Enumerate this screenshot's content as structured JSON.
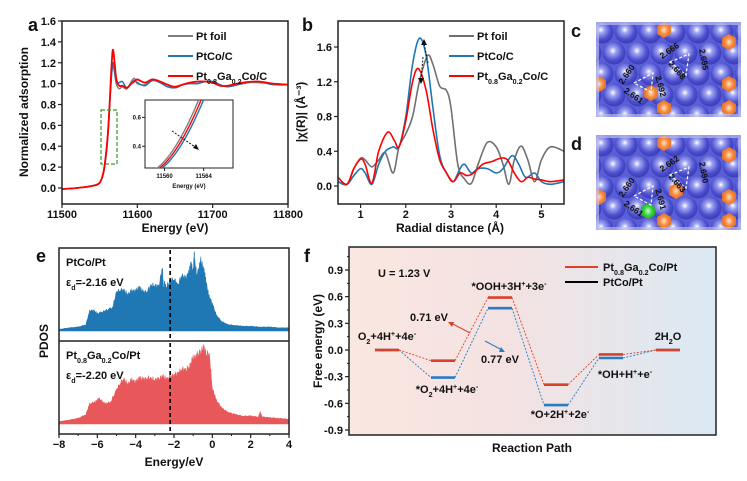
{
  "chart_data": [
    {
      "panel": "a",
      "type": "line",
      "xlabel": "Energy (eV)",
      "ylabel": "Normalized adsorption",
      "xlim": [
        11500,
        11800
      ],
      "ylim": [
        -0.15,
        1.6
      ],
      "xticks": [
        11500,
        11600,
        11700,
        11800
      ],
      "yticks": [
        0.0,
        0.2,
        0.4,
        0.6,
        0.8,
        1.0,
        1.2,
        1.4,
        1.6
      ],
      "ytick_labels": [
        "0.0",
        "0.2",
        "0.4",
        "0.6",
        "0.8",
        "1.0",
        "1.2",
        "1.4",
        "1.6"
      ],
      "legend_position": "top-right",
      "series": [
        {
          "name": "Pt foil",
          "color": "#7f7f7f",
          "x": [
            11500,
            11520,
            11540,
            11550,
            11555,
            11558,
            11560,
            11562,
            11564,
            11566,
            11568,
            11572,
            11576,
            11580,
            11586,
            11592,
            11596,
            11600,
            11610,
            11620,
            11630,
            11640,
            11650,
            11660,
            11670,
            11680,
            11690,
            11700,
            11710,
            11720,
            11740,
            11760,
            11780,
            11800
          ],
          "y": [
            -0.01,
            0.0,
            0.02,
            0.05,
            0.15,
            0.3,
            0.45,
            0.65,
            0.9,
            1.1,
            1.18,
            1.0,
            0.95,
            0.97,
            0.95,
            1.02,
            1.05,
            1.0,
            0.99,
            1.04,
            1.02,
            0.99,
            0.96,
            0.99,
            1.01,
            1.0,
            1.02,
            1.01,
            0.98,
            0.98,
            1.01,
            1.01,
            1.0,
            0.99
          ]
        },
        {
          "name": "PtCo/C",
          "color": "#1f77b4",
          "x": [
            11500,
            11520,
            11540,
            11550,
            11555,
            11558,
            11560,
            11562,
            11564,
            11566,
            11568,
            11572,
            11576,
            11580,
            11586,
            11592,
            11596,
            11600,
            11610,
            11620,
            11630,
            11640,
            11650,
            11660,
            11670,
            11680,
            11690,
            11700,
            11710,
            11720,
            11740,
            11760,
            11780,
            11800
          ],
          "y": [
            -0.01,
            0.0,
            0.02,
            0.05,
            0.14,
            0.28,
            0.42,
            0.62,
            0.88,
            1.1,
            1.2,
            1.02,
            1.01,
            1.02,
            0.96,
            1.0,
            1.03,
            1.01,
            0.98,
            1.03,
            1.01,
            0.97,
            0.96,
            0.99,
            1.0,
            1.0,
            1.02,
            1.02,
            0.99,
            0.97,
            1.0,
            1.02,
            0.99,
            0.99
          ]
        },
        {
          "name": "Pt0.8Ga0.2Co/C",
          "color": "#ff0000",
          "x": [
            11500,
            11520,
            11540,
            11550,
            11555,
            11558,
            11560,
            11562,
            11564,
            11566,
            11568,
            11572,
            11576,
            11580,
            11586,
            11592,
            11596,
            11600,
            11610,
            11620,
            11630,
            11640,
            11650,
            11660,
            11670,
            11680,
            11690,
            11700,
            11710,
            11720,
            11740,
            11760,
            11780,
            11800
          ],
          "y": [
            -0.01,
            0.0,
            0.02,
            0.05,
            0.15,
            0.3,
            0.44,
            0.64,
            0.92,
            1.2,
            1.32,
            1.05,
            0.98,
            0.98,
            0.96,
            1.0,
            1.02,
            1.04,
            1.01,
            1.04,
            1.02,
            0.99,
            0.97,
            0.99,
            1.01,
            1.02,
            1.02,
            1.01,
            0.98,
            0.98,
            1.01,
            1.02,
            1.0,
            0.99
          ]
        }
      ],
      "annotations": [
        "green dashed box around absorption edge (11555–11565 eV, 0.23–0.75)"
      ],
      "inset": {
        "xlabel": "Energy (eV)",
        "xticks": [
          11560,
          11564
        ],
        "yticks": [
          0.4,
          0.6
        ],
        "xlim": [
          11558,
          11567
        ],
        "ylim": [
          0.25,
          0.72
        ],
        "annotation": "dashed arrow indicating shift to higher energy"
      }
    },
    {
      "panel": "b",
      "type": "line",
      "xlabel": "Radial distance (Å)",
      "ylabel": "|χ(R)| (Å⁻³)",
      "xlim": [
        0.5,
        5.5
      ],
      "ylim": [
        -0.2,
        1.9
      ],
      "xticks": [
        1,
        2,
        3,
        4,
        5
      ],
      "yticks": [
        0.0,
        0.4,
        0.8,
        1.2,
        1.6
      ],
      "ytick_labels": [
        "0.0",
        "0.4",
        "0.8",
        "1.2",
        "1.6"
      ],
      "legend_position": "top-right",
      "series": [
        {
          "name": "Pt foil",
          "color": "#707070",
          "x": [
            0.5,
            0.7,
            0.85,
            1.0,
            1.1,
            1.25,
            1.4,
            1.55,
            1.72,
            1.85,
            2.0,
            2.15,
            2.3,
            2.48,
            2.6,
            2.75,
            2.9,
            3.0,
            3.15,
            3.3,
            3.45,
            3.6,
            3.8,
            4.0,
            4.15,
            4.28,
            4.4,
            4.55,
            4.7,
            4.85,
            5.0,
            5.2,
            5.5
          ],
          "y": [
            0.05,
            0.02,
            0.2,
            0.32,
            0.3,
            0.22,
            0.3,
            0.38,
            0.15,
            0.45,
            0.6,
            0.8,
            1.2,
            1.5,
            1.4,
            1.15,
            1.1,
            0.9,
            0.25,
            0.08,
            0.03,
            0.25,
            0.5,
            0.45,
            0.25,
            0.02,
            0.3,
            0.46,
            0.3,
            0.05,
            0.3,
            0.45,
            0.4
          ]
        },
        {
          "name": "PtCo/C",
          "color": "#1f77b4",
          "x": [
            0.5,
            0.7,
            0.85,
            1.0,
            1.1,
            1.25,
            1.4,
            1.55,
            1.72,
            1.85,
            2.0,
            2.15,
            2.3,
            2.45,
            2.6,
            2.75,
            2.9,
            3.05,
            3.2,
            3.3,
            3.45,
            3.6,
            3.8,
            4.0,
            4.15,
            4.35,
            4.5,
            4.65,
            4.85,
            5.0,
            5.2,
            5.5
          ],
          "y": [
            0.05,
            0.02,
            0.12,
            0.2,
            0.15,
            0.02,
            0.25,
            0.4,
            0.45,
            0.45,
            0.8,
            1.4,
            1.7,
            1.5,
            0.9,
            0.35,
            0.15,
            0.05,
            0.2,
            0.25,
            0.15,
            0.2,
            0.2,
            0.15,
            0.2,
            0.35,
            0.25,
            0.1,
            0.15,
            0.05,
            0.02,
            0.05
          ]
        },
        {
          "name": "Pt0.8Ga0.2Co/C",
          "color": "#ff0000",
          "x": [
            0.5,
            0.7,
            0.85,
            1.0,
            1.1,
            1.25,
            1.4,
            1.6,
            1.75,
            1.85,
            2.0,
            2.15,
            2.28,
            2.45,
            2.6,
            2.75,
            2.9,
            3.05,
            3.2,
            3.35,
            3.5,
            3.7,
            3.9,
            4.1,
            4.25,
            4.4,
            4.55,
            4.7,
            4.85,
            5.0,
            5.2,
            5.5
          ],
          "y": [
            0.1,
            0.02,
            0.2,
            0.31,
            0.25,
            0.03,
            0.4,
            0.62,
            0.52,
            0.45,
            0.75,
            1.2,
            1.35,
            1.1,
            0.65,
            0.3,
            0.15,
            0.05,
            0.15,
            0.12,
            0.15,
            0.25,
            0.28,
            0.32,
            0.3,
            0.15,
            0.05,
            0.1,
            0.08,
            0.07,
            0.05,
            0.07
          ]
        }
      ],
      "annotations": [
        "dashed arrows near peak at ~2.3 Å"
      ]
    },
    {
      "panel": "e",
      "type": "area",
      "xlabel": "Energy/eV",
      "ylabel": "PDOS",
      "xlim": [
        -8,
        4
      ],
      "xticks": [
        -8,
        -6,
        -4,
        -2,
        0,
        2,
        4
      ],
      "xtick_labels": [
        "−8",
        "−6",
        "−4",
        "−2",
        "0",
        "2",
        "4"
      ],
      "series": [
        {
          "name": "PtCo/Pt",
          "label_main": "PtCo/Pt",
          "epsilon_label": "ε",
          "epsilon_sub": "d",
          "epsilon_value": "=-2.16 eV",
          "d_band_center": -2.16,
          "color": "#1f77b4",
          "x": [
            -8,
            -7.5,
            -7,
            -6.6,
            -6.4,
            -6.2,
            -6,
            -5.6,
            -5.2,
            -5,
            -4.8,
            -4.6,
            -4.4,
            -4.2,
            -4,
            -3.8,
            -3.6,
            -3.4,
            -3.2,
            -3.0,
            -2.8,
            -2.6,
            -2.55,
            -2.5,
            -2.4,
            -2.2,
            -2.0,
            -1.8,
            -1.6,
            -1.4,
            -1.2,
            -1.1,
            -1.0,
            -0.95,
            -0.9,
            -0.8,
            -0.6,
            -0.45,
            -0.35,
            -0.2,
            0,
            0.2,
            0.5,
            0.8,
            1.2,
            1.6,
            2,
            2.5,
            3,
            3.5,
            4
          ],
          "y": [
            0.02,
            0.04,
            0.05,
            0.08,
            0.25,
            0.26,
            0.22,
            0.25,
            0.3,
            0.48,
            0.52,
            0.5,
            0.46,
            0.5,
            0.5,
            0.55,
            0.48,
            0.5,
            0.56,
            0.58,
            0.54,
            0.8,
            0.5,
            0.6,
            0.55,
            0.62,
            0.66,
            0.56,
            0.7,
            0.65,
            0.75,
            0.85,
            0.7,
            1.0,
            0.82,
            0.7,
            0.88,
            0.77,
            0.65,
            0.45,
            0.35,
            0.2,
            0.12,
            0.08,
            0.07,
            0.06,
            0.06,
            0.05,
            0.05,
            0.04,
            0.04
          ]
        },
        {
          "name": "Pt0.8Ga0.2Co/Pt",
          "label_main": "Pt0.8Ga0.2Co/Pt",
          "epsilon_label": "ε",
          "epsilon_sub": "d",
          "epsilon_value": "=-2.20 eV",
          "d_band_center": -2.2,
          "color": "#e8585a",
          "x": [
            -8,
            -7.5,
            -7,
            -6.6,
            -6.4,
            -6.1,
            -5.9,
            -5.6,
            -5.3,
            -5.0,
            -4.8,
            -4.6,
            -4.4,
            -4.2,
            -4.0,
            -3.8,
            -3.6,
            -3.4,
            -3.2,
            -3.0,
            -2.8,
            -2.6,
            -2.4,
            -2.2,
            -2.0,
            -1.8,
            -1.6,
            -1.4,
            -1.2,
            -1.0,
            -0.8,
            -0.6,
            -0.45,
            -0.3,
            -0.15,
            0,
            0.2,
            0.5,
            0.8,
            1.2,
            1.6,
            2,
            2.4,
            2.5,
            2.6,
            3,
            3.5,
            4
          ],
          "y": [
            0.03,
            0.05,
            0.07,
            0.12,
            0.25,
            0.28,
            0.32,
            0.25,
            0.28,
            0.42,
            0.52,
            0.55,
            0.5,
            0.55,
            0.52,
            0.58,
            0.55,
            0.58,
            0.56,
            0.56,
            0.55,
            0.6,
            0.56,
            0.58,
            0.62,
            0.62,
            0.7,
            0.66,
            0.72,
            0.82,
            0.85,
            0.9,
            0.95,
            0.88,
            0.85,
            0.45,
            0.3,
            0.2,
            0.15,
            0.12,
            0.1,
            0.1,
            0.09,
            0.15,
            0.09,
            0.08,
            0.07,
            0.06
          ]
        }
      ],
      "vline": -2.2
    },
    {
      "panel": "f",
      "type": "line",
      "title": "",
      "annotation": "U = 1.23 V",
      "xlabel": "Reaction Path",
      "ylabel": "Free energy (eV)",
      "ylim": [
        -0.95,
        1.1
      ],
      "yticks": [
        -0.9,
        -0.6,
        -0.3,
        0.0,
        0.3,
        0.6,
        0.9
      ],
      "ytick_labels": [
        "-0.9",
        "-0.6",
        "-0.3",
        "0.0",
        "0.3",
        "0.6",
        "0.9"
      ],
      "categories": [
        "O2+4H++4e-",
        "*O2+4H++4e-",
        "*OOH+3H++3e-",
        "*O+2H++2e-",
        "*OH+H++e-",
        "2H2O"
      ],
      "series": [
        {
          "name": "Pt0.8Ga0.2Co/Pt",
          "color": "#d9412b",
          "values": [
            0.0,
            -0.12,
            0.59,
            -0.39,
            -0.05,
            0.0
          ]
        },
        {
          "name": "PtCo/Pt",
          "color": "#2b7bbf",
          "legend_color": "#000000",
          "values": [
            0.0,
            -0.31,
            0.47,
            -0.62,
            -0.09,
            0.0
          ]
        }
      ],
      "barrier_labels": [
        {
          "text": "0.71 eV",
          "color": "#d9412b"
        },
        {
          "text": "0.77 eV",
          "color": "#2b7bbf"
        }
      ],
      "legend_position": "top-right"
    }
  ],
  "panels": {
    "a": {
      "letter": "a"
    },
    "b": {
      "letter": "b"
    },
    "c": {
      "letter": "c",
      "bond_lengths": [
        "2.660",
        "2.661",
        "2.692",
        "2.666",
        "2.668",
        "2.695"
      ]
    },
    "d": {
      "letter": "d",
      "bond_lengths": [
        "2.660",
        "2.661",
        "2.691",
        "2.662",
        "2.663",
        "2.690"
      ]
    },
    "e": {
      "letter": "e"
    },
    "f": {
      "letter": "f"
    }
  },
  "legend_ab": {
    "items": [
      {
        "main": "Pt foil",
        "sub1": "",
        "mid": "",
        "sub2": "",
        "tail": ""
      },
      {
        "main": "PtCo/C",
        "sub1": "",
        "mid": "",
        "sub2": "",
        "tail": ""
      },
      {
        "main": "Pt",
        "sub1": "0.8",
        "mid": "Ga",
        "sub2": "0.2",
        "tail": "Co/C"
      }
    ]
  },
  "legend_f": {
    "items": [
      {
        "main": "Pt",
        "sub1": "0.8",
        "mid": "Ga",
        "sub2": "0.2",
        "tail": "Co/Pt"
      },
      {
        "main": "PtCo/Pt",
        "sub1": "",
        "mid": "",
        "sub2": "",
        "tail": ""
      }
    ]
  },
  "state_labels_f": [
    {
      "parts": [
        [
          "O",
          ""
        ],
        [
          "2",
          "sub"
        ],
        [
          "+4H",
          ""
        ],
        [
          "+",
          "sup"
        ],
        [
          "+4e",
          ""
        ],
        [
          "-",
          "sup"
        ]
      ]
    },
    {
      "parts": [
        [
          "*O",
          ""
        ],
        [
          "2",
          "sub"
        ],
        [
          "+4H",
          ""
        ],
        [
          "+",
          "sup"
        ],
        [
          "+4e",
          ""
        ],
        [
          "-",
          "sup"
        ]
      ]
    },
    {
      "parts": [
        [
          "*OOH+3H",
          ""
        ],
        [
          "+",
          "sup"
        ],
        [
          "+3e",
          ""
        ],
        [
          "-",
          "sup"
        ]
      ]
    },
    {
      "parts": [
        [
          "*O+2H",
          ""
        ],
        [
          "+",
          "sup"
        ],
        [
          "+2e",
          ""
        ],
        [
          "-",
          "sup"
        ]
      ]
    },
    {
      "parts": [
        [
          "*OH+H",
          ""
        ],
        [
          "+",
          "sup"
        ],
        [
          "+e",
          ""
        ],
        [
          "-",
          "sup"
        ]
      ]
    },
    {
      "parts": [
        [
          "2H",
          ""
        ],
        [
          "2",
          "sub"
        ],
        [
          "O",
          ""
        ]
      ]
    }
  ]
}
